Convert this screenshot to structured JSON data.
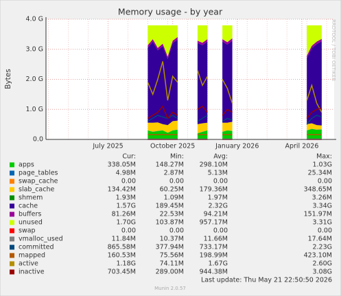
{
  "chart_data": {
    "type": "area",
    "title": "Memory usage - by year",
    "y_label": "Bytes",
    "side_text": "RRDTOOL / TOBI OETIKER",
    "categories": [
      null,
      null,
      null,
      null,
      null,
      null,
      null,
      null,
      null,
      null,
      null,
      null,
      "July 2025",
      null,
      null,
      null,
      null,
      null,
      null,
      null,
      null,
      null,
      null,
      null,
      null,
      "October 2025",
      null,
      null,
      null,
      null,
      null,
      null,
      null,
      null,
      null,
      null,
      null,
      null,
      "January 2026",
      null,
      null,
      null,
      null,
      null,
      null,
      null,
      null,
      null,
      null,
      null,
      null,
      "April 2026",
      null,
      null,
      null,
      null,
      null,
      null
    ],
    "ylim": [
      0,
      4
    ],
    "yticks": [
      {
        "value": 0,
        "label": "0.0"
      },
      {
        "value": 1,
        "label": "1.0 G"
      },
      {
        "value": 2,
        "label": "2.0 G"
      },
      {
        "value": 3,
        "label": "3.0 G"
      },
      {
        "value": 4,
        "label": "4.0 G"
      }
    ],
    "grid": true,
    "legend_headers": [
      "Cur:",
      "Min:",
      "Avg:",
      "Max:"
    ],
    "series": [
      {
        "name": "apps",
        "color": "#00cc00",
        "style": "area",
        "cur": "338.05M",
        "min": "148.27M",
        "avg": "298.10M",
        "max": "1.03G",
        "values": [
          null,
          null,
          null,
          null,
          null,
          null,
          null,
          null,
          null,
          null,
          null,
          null,
          null,
          null,
          null,
          null,
          null,
          null,
          null,
          null,
          0.3,
          0.25,
          0.28,
          0.3,
          0.22,
          0.3,
          0.32,
          null,
          null,
          null,
          0.2,
          0.25,
          0.3,
          null,
          null,
          0.25,
          0.3,
          0.28,
          null,
          null,
          null,
          null,
          null,
          null,
          null,
          null,
          null,
          null,
          null,
          null,
          null,
          null,
          0.3,
          0.35,
          0.32,
          0.33,
          null,
          null
        ]
      },
      {
        "name": "page_tables",
        "color": "#0066b3",
        "style": "area",
        "cur": "4.98M",
        "min": "2.87M",
        "avg": "5.13M",
        "max": "25.34M",
        "values": [
          null,
          null,
          null,
          null,
          null,
          null,
          null,
          null,
          null,
          null,
          null,
          null,
          null,
          null,
          null,
          null,
          null,
          null,
          null,
          null,
          0.005,
          0.005,
          0.005,
          0.005,
          0.005,
          0.005,
          0.005,
          null,
          null,
          null,
          0.005,
          0.005,
          0.005,
          null,
          null,
          0.005,
          0.005,
          0.005,
          null,
          null,
          null,
          null,
          null,
          null,
          null,
          null,
          null,
          null,
          null,
          null,
          null,
          null,
          0.005,
          0.005,
          0.005,
          0.005,
          null,
          null
        ]
      },
      {
        "name": "swap_cache",
        "color": "#ff8000",
        "style": "area",
        "cur": "0.00",
        "min": "0.00",
        "avg": "0.00",
        "max": "0.00",
        "values": [
          null,
          null,
          null,
          null,
          null,
          null,
          null,
          null,
          null,
          null,
          null,
          null,
          null,
          null,
          null,
          null,
          null,
          null,
          null,
          null,
          0,
          0,
          0,
          0,
          0,
          0,
          0,
          null,
          null,
          null,
          0,
          0,
          0,
          null,
          null,
          0,
          0,
          0,
          null,
          null,
          null,
          null,
          null,
          null,
          null,
          null,
          null,
          null,
          null,
          null,
          null,
          null,
          0,
          0,
          0,
          0,
          null,
          null
        ]
      },
      {
        "name": "slab_cache",
        "color": "#ffcc00",
        "style": "area",
        "cur": "134.42M",
        "min": "60.25M",
        "avg": "179.36M",
        "max": "348.65M",
        "values": [
          null,
          null,
          null,
          null,
          null,
          null,
          null,
          null,
          null,
          null,
          null,
          null,
          null,
          null,
          null,
          null,
          null,
          null,
          null,
          null,
          0.25,
          0.3,
          0.28,
          0.2,
          0.25,
          0.3,
          0.3,
          null,
          null,
          null,
          0.3,
          0.28,
          0.25,
          null,
          null,
          0.3,
          0.25,
          0.3,
          null,
          null,
          null,
          null,
          null,
          null,
          null,
          null,
          null,
          null,
          null,
          null,
          null,
          null,
          0.2,
          0.18,
          0.15,
          0.13,
          null,
          null
        ]
      },
      {
        "name": "shmem",
        "color": "#008f00",
        "style": "area",
        "cur": "1.93M",
        "min": "1.09M",
        "avg": "1.97M",
        "max": "3.26M",
        "values": [
          null,
          null,
          null,
          null,
          null,
          null,
          null,
          null,
          null,
          null,
          null,
          null,
          null,
          null,
          null,
          null,
          null,
          null,
          null,
          null,
          0.002,
          0.002,
          0.002,
          0.002,
          0.002,
          0.002,
          0.002,
          null,
          null,
          null,
          0.002,
          0.002,
          0.002,
          null,
          null,
          0.002,
          0.002,
          0.002,
          null,
          null,
          null,
          null,
          null,
          null,
          null,
          null,
          null,
          null,
          null,
          null,
          null,
          null,
          0.002,
          0.002,
          0.002,
          0.002,
          null,
          null
        ]
      },
      {
        "name": "cache",
        "color": "#330099",
        "style": "area",
        "cur": "1.57G",
        "min": "189.45M",
        "avg": "2.32G",
        "max": "3.34G",
        "values": [
          null,
          null,
          null,
          null,
          null,
          null,
          null,
          null,
          null,
          null,
          null,
          null,
          null,
          null,
          null,
          null,
          null,
          null,
          null,
          null,
          2.5,
          2.7,
          2.4,
          2.6,
          2.2,
          2.6,
          2.7,
          null,
          null,
          null,
          2.7,
          2.6,
          2.7,
          null,
          null,
          2.7,
          2.6,
          2.7,
          null,
          null,
          null,
          null,
          null,
          null,
          null,
          null,
          null,
          null,
          null,
          null,
          null,
          null,
          2.2,
          2.5,
          2.7,
          2.8,
          null,
          null
        ]
      },
      {
        "name": "buffers",
        "color": "#990099",
        "style": "area",
        "cur": "81.26M",
        "min": "22.53M",
        "avg": "94.21M",
        "max": "151.97M",
        "values": [
          null,
          null,
          null,
          null,
          null,
          null,
          null,
          null,
          null,
          null,
          null,
          null,
          null,
          null,
          null,
          null,
          null,
          null,
          null,
          null,
          0.08,
          0.08,
          0.08,
          0.08,
          0.08,
          0.08,
          0.08,
          null,
          null,
          null,
          0.08,
          0.08,
          0.08,
          null,
          null,
          0.08,
          0.08,
          0.08,
          null,
          null,
          null,
          null,
          null,
          null,
          null,
          null,
          null,
          null,
          null,
          null,
          null,
          null,
          0.08,
          0.08,
          0.08,
          0.08,
          null,
          null
        ]
      },
      {
        "name": "unused",
        "color": "#ccff00",
        "style": "area",
        "cur": "1.70G",
        "min": "103.87M",
        "avg": "957.17M",
        "max": "3.31G",
        "values": [
          null,
          null,
          null,
          null,
          null,
          null,
          null,
          null,
          null,
          null,
          null,
          null,
          null,
          null,
          null,
          null,
          null,
          null,
          null,
          null,
          0.66,
          0.46,
          0.75,
          0.61,
          1.04,
          0.51,
          0.39,
          null,
          null,
          null,
          0.51,
          0.58,
          0.46,
          null,
          null,
          0.46,
          0.56,
          0.43,
          null,
          null,
          null,
          null,
          null,
          null,
          null,
          null,
          null,
          null,
          null,
          null,
          null,
          null,
          1.01,
          0.68,
          0.54,
          0.45,
          null,
          null
        ]
      },
      {
        "name": "swap",
        "color": "#ff0000",
        "style": "line",
        "cur": "0.00",
        "min": "0.00",
        "avg": "0.00",
        "max": "0.00",
        "values": [
          null,
          null,
          null,
          null,
          null,
          null,
          null,
          null,
          null,
          null,
          null,
          null,
          null,
          null,
          null,
          null,
          null,
          null,
          null,
          null,
          0,
          0,
          0,
          0,
          0,
          0,
          0,
          null,
          null,
          null,
          0,
          0,
          0,
          null,
          null,
          0,
          0,
          0,
          null,
          null,
          null,
          null,
          null,
          null,
          null,
          null,
          null,
          null,
          null,
          null,
          null,
          null,
          0,
          0,
          0,
          0,
          null,
          null
        ]
      },
      {
        "name": "vmalloc_used",
        "color": "#808080",
        "style": "line",
        "cur": "11.84M",
        "min": "10.37M",
        "avg": "11.66M",
        "max": "17.64M",
        "values": [
          null,
          null,
          null,
          null,
          null,
          null,
          null,
          null,
          null,
          null,
          null,
          null,
          null,
          null,
          null,
          null,
          null,
          null,
          null,
          null,
          0.012,
          0.012,
          0.012,
          0.012,
          0.012,
          0.012,
          0.012,
          null,
          null,
          null,
          0.012,
          0.012,
          0.012,
          null,
          null,
          0.012,
          0.012,
          0.012,
          null,
          null,
          null,
          null,
          null,
          null,
          null,
          null,
          null,
          null,
          null,
          null,
          null,
          null,
          0.012,
          0.012,
          0.012,
          0.012,
          null,
          null
        ]
      },
      {
        "name": "committed",
        "color": "#00487d",
        "style": "line",
        "cur": "865.58M",
        "min": "377.94M",
        "avg": "733.17M",
        "max": "2.23G",
        "values": [
          null,
          null,
          null,
          null,
          null,
          null,
          null,
          null,
          null,
          null,
          null,
          null,
          null,
          null,
          null,
          null,
          null,
          null,
          null,
          null,
          0.6,
          0.7,
          0.8,
          0.75,
          0.7,
          0.8,
          0.7,
          null,
          null,
          null,
          0.6,
          0.7,
          0.8,
          null,
          null,
          0.6,
          0.7,
          0.65,
          null,
          null,
          null,
          null,
          null,
          null,
          null,
          null,
          null,
          null,
          null,
          null,
          null,
          null,
          0.5,
          0.7,
          0.8,
          0.75,
          null,
          null
        ]
      },
      {
        "name": "mapped",
        "color": "#b35a00",
        "style": "line",
        "cur": "160.53M",
        "min": "75.56M",
        "avg": "198.99M",
        "max": "423.10M",
        "values": [
          null,
          null,
          null,
          null,
          null,
          null,
          null,
          null,
          null,
          null,
          null,
          null,
          null,
          null,
          null,
          null,
          null,
          null,
          null,
          null,
          0.16,
          0.16,
          0.16,
          0.16,
          0.16,
          0.16,
          0.16,
          null,
          null,
          null,
          0.16,
          0.16,
          0.16,
          null,
          null,
          0.16,
          0.16,
          0.16,
          null,
          null,
          null,
          null,
          null,
          null,
          null,
          null,
          null,
          null,
          null,
          null,
          null,
          null,
          0.16,
          0.16,
          0.16,
          0.16,
          null,
          null
        ]
      },
      {
        "name": "active",
        "color": "#b38f00",
        "style": "line",
        "cur": "1.18G",
        "min": "74.11M",
        "avg": "1.67G",
        "max": "2.60G",
        "values": [
          null,
          null,
          null,
          null,
          null,
          null,
          null,
          null,
          null,
          null,
          null,
          null,
          null,
          null,
          null,
          null,
          null,
          null,
          null,
          null,
          1.9,
          1.5,
          2.0,
          2.6,
          1.3,
          2.1,
          1.9,
          null,
          null,
          null,
          2.3,
          1.8,
          2.1,
          null,
          null,
          2.0,
          1.7,
          1.2,
          null,
          null,
          null,
          null,
          null,
          null,
          null,
          null,
          null,
          null,
          null,
          null,
          null,
          null,
          1.3,
          1.8,
          1.2,
          0.9,
          null,
          null
        ]
      },
      {
        "name": "inactive",
        "color": "#990000",
        "style": "line",
        "cur": "703.45M",
        "min": "289.00M",
        "avg": "944.38M",
        "max": "3.08G",
        "values": [
          null,
          null,
          null,
          null,
          null,
          null,
          null,
          null,
          null,
          null,
          null,
          null,
          null,
          null,
          null,
          null,
          null,
          null,
          null,
          null,
          0.7,
          0.8,
          0.9,
          1.1,
          0.7,
          0.9,
          0.8,
          null,
          null,
          null,
          1.0,
          1.1,
          0.9,
          null,
          null,
          0.8,
          1.0,
          0.9,
          null,
          null,
          null,
          null,
          null,
          null,
          null,
          null,
          null,
          null,
          null,
          null,
          null,
          null,
          0.7,
          0.9,
          1.0,
          1.05,
          null,
          null
        ]
      }
    ],
    "last_update": "Last update: Thu May 21 22:50:50 2026",
    "footer": "Munin 2.0.57"
  }
}
